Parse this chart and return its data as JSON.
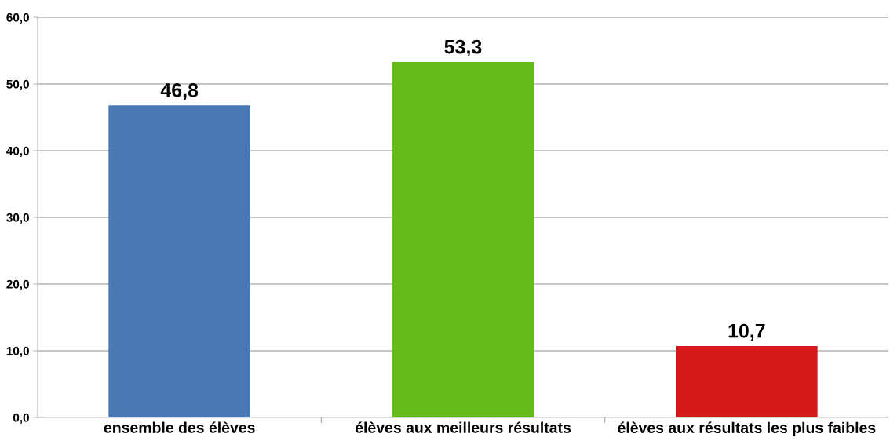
{
  "chart_data": {
    "type": "bar",
    "categories": [
      "ensemble des élèves",
      "élèves aux meilleurs résultats",
      "élèves aux résultats les plus faibles"
    ],
    "values": [
      46.8,
      53.3,
      10.7
    ],
    "colors": [
      "#4a78b4",
      "#66bb1a",
      "#d41a1a"
    ],
    "value_labels": [
      "46,8",
      "53,3",
      "10,7"
    ],
    "ylim": [
      0,
      60
    ],
    "yticks": [
      {
        "value": 0,
        "label": "0,0"
      },
      {
        "value": 10,
        "label": "10,0"
      },
      {
        "value": 20,
        "label": "20,0"
      },
      {
        "value": 30,
        "label": "30,0"
      },
      {
        "value": 40,
        "label": "40,0"
      },
      {
        "value": 50,
        "label": "50,0"
      },
      {
        "value": 60,
        "label": "60,0"
      }
    ],
    "grid": "y",
    "legend": false
  }
}
